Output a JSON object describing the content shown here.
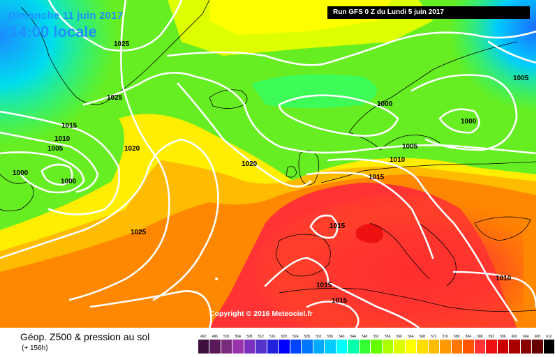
{
  "header": {
    "date": "Dimanche 11 juin 2017",
    "time": "14:00 locale",
    "run": "Run GFS 0 Z du Lundi 5 juin 2017"
  },
  "copyright": "Copyright © 2016 Meteociel.fr",
  "footer": {
    "title": "Géop. Z500 & pression au sol",
    "subtitle": "(+ 156h)"
  },
  "isobar_labels": [
    "1025",
    "1025",
    "1015",
    "1010",
    "1005",
    "1000",
    "1000",
    "1020",
    "1020",
    "1025",
    "1000",
    "1000",
    "1005",
    "1005",
    "1010",
    "1015",
    "1015",
    "1015",
    "1015",
    "1010"
  ],
  "legend": {
    "values": [
      "492",
      "496",
      "500",
      "504",
      "508",
      "512",
      "516",
      "520",
      "524",
      "528",
      "532",
      "536",
      "540",
      "544",
      "548",
      "552",
      "556",
      "560",
      "564",
      "568",
      "572",
      "576",
      "580",
      "584",
      "588",
      "592",
      "596",
      "600",
      "604",
      "608",
      "612"
    ],
    "colors": [
      "#3d0f3d",
      "#5a1a5a",
      "#7a2a7a",
      "#9933aa",
      "#7b2fbf",
      "#5533cc",
      "#2222dd",
      "#0000ff",
      "#0044ff",
      "#0077ff",
      "#00aaff",
      "#00ccff",
      "#00ffff",
      "#00ffaa",
      "#33ff33",
      "#66ff00",
      "#aaff00",
      "#ddff00",
      "#ffff00",
      "#ffdd00",
      "#ffbb00",
      "#ff9900",
      "#ff7700",
      "#ff5500",
      "#ff3333",
      "#ee1111",
      "#cc0000",
      "#aa0000",
      "#880000",
      "#660000",
      "#000000"
    ]
  }
}
